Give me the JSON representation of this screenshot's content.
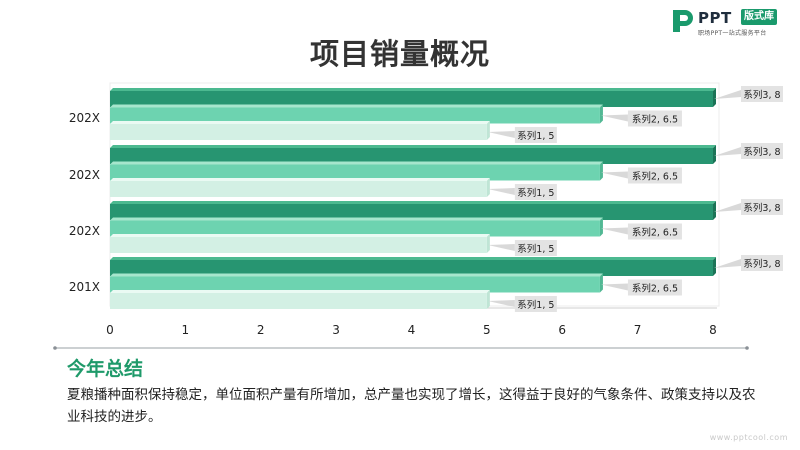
{
  "logo": {
    "brand": "PPT",
    "badge": "版式库",
    "tagline": "职场PPT一站式服务平台",
    "icon": "ppt-logo-mark",
    "colors": {
      "green": "#1a9a6c",
      "dark": "#1f2d3d"
    }
  },
  "title": "项目销量概况",
  "chart_data": {
    "type": "bar",
    "orientation": "horizontal",
    "categories": [
      "202X",
      "202X",
      "202X",
      "201X"
    ],
    "series": [
      {
        "name": "系列1",
        "values": [
          5,
          5,
          5,
          5
        ],
        "color": "#d3f0e4"
      },
      {
        "name": "系列2",
        "values": [
          6.5,
          6.5,
          6.5,
          6.5
        ],
        "color": "#6dd3b0"
      },
      {
        "name": "系列3",
        "values": [
          8,
          8,
          8,
          8
        ],
        "color": "#279571"
      }
    ],
    "data_labels": [
      [
        "系列1, 5",
        "系列2, 6.5",
        "系列3, 8"
      ],
      [
        "系列1, 5",
        "系列2, 6.5",
        "系列3, 8"
      ],
      [
        "系列1, 5",
        "系列2, 6.5",
        "系列3, 8"
      ],
      [
        "系列1, 5",
        "系列2, 6.5",
        "系列3, 8"
      ]
    ],
    "x_ticks": [
      "0",
      "1",
      "2",
      "3",
      "4",
      "5",
      "6",
      "7",
      "8"
    ],
    "xlim": [
      0,
      8
    ],
    "xlabel": "",
    "ylabel": "",
    "grid": false,
    "legend": "none"
  },
  "summary": {
    "title": "今年总结",
    "body": "夏粮播种面积保持稳定，单位面积产量有所增加，总产量也实现了增长，这得益于良好的气象条件、政策支持以及农业科技的进步。",
    "accent": "#1f9a6a"
  },
  "watermark": "www.pptcool.com"
}
